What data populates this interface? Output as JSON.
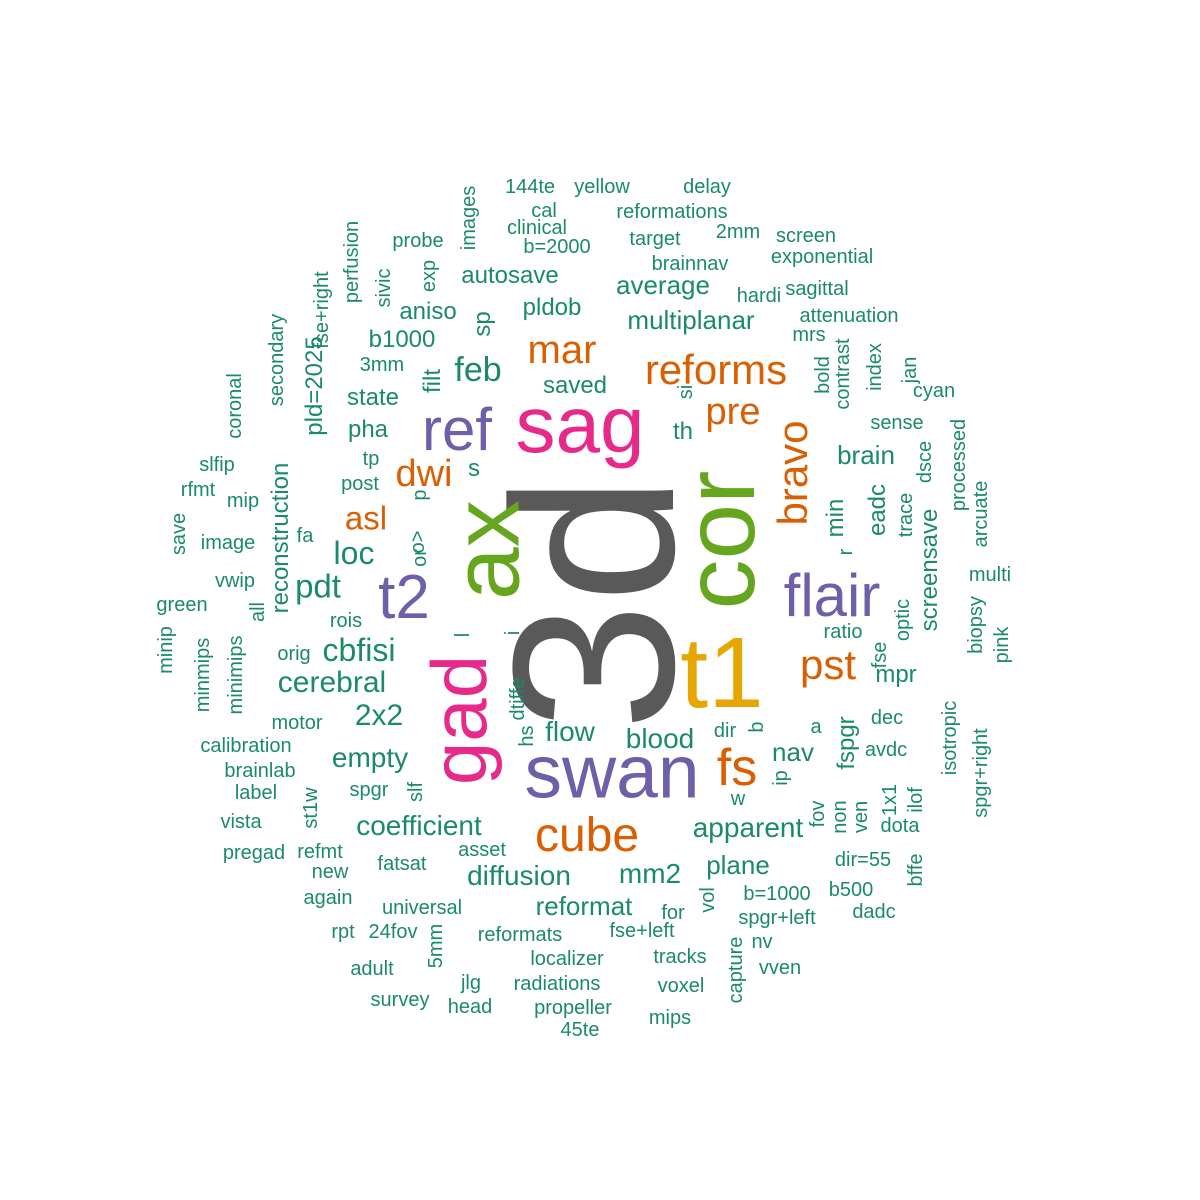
{
  "colors": {
    "background": "#ffffff",
    "gray": "#595959",
    "teal": "#1b8a6b",
    "orange": "#d95f02",
    "purple": "#6e5fa8",
    "magenta": "#e7298a",
    "green": "#66a61e",
    "gold": "#e6a500"
  },
  "words": [
    {
      "text": "3d",
      "color": "gray",
      "orientation": "vertical"
    },
    {
      "text": "sag",
      "color": "magenta",
      "orientation": "horizontal"
    },
    {
      "text": "cor",
      "color": "green",
      "orientation": "vertical"
    },
    {
      "text": "t1",
      "color": "gold",
      "orientation": "horizontal"
    },
    {
      "text": "ax",
      "color": "green",
      "orientation": "vertical"
    },
    {
      "text": "swan",
      "color": "purple",
      "orientation": "horizontal"
    },
    {
      "text": "gad",
      "color": "magenta",
      "orientation": "vertical"
    },
    {
      "text": "flair",
      "color": "purple",
      "orientation": "horizontal"
    },
    {
      "text": "ref",
      "color": "purple",
      "orientation": "horizontal"
    },
    {
      "text": "t2",
      "color": "purple",
      "orientation": "horizontal"
    },
    {
      "text": "cube",
      "color": "orange",
      "orientation": "horizontal"
    },
    {
      "text": "reforms",
      "color": "orange",
      "orientation": "horizontal"
    },
    {
      "text": "bravo",
      "color": "orange",
      "orientation": "vertical"
    },
    {
      "text": "fs",
      "color": "orange",
      "orientation": "horizontal"
    },
    {
      "text": "pst",
      "color": "orange",
      "orientation": "horizontal"
    },
    {
      "text": "mar",
      "color": "orange",
      "orientation": "horizontal"
    },
    {
      "text": "pre",
      "color": "orange",
      "orientation": "horizontal"
    },
    {
      "text": "dwi",
      "color": "orange",
      "orientation": "horizontal"
    },
    {
      "text": "asl",
      "color": "orange",
      "orientation": "horizontal"
    },
    {
      "text": "feb",
      "color": "teal",
      "orientation": "horizontal"
    },
    {
      "text": "loc",
      "color": "teal",
      "orientation": "horizontal"
    },
    {
      "text": "pdt",
      "color": "teal",
      "orientation": "horizontal"
    },
    {
      "text": "cbfisi",
      "color": "teal",
      "orientation": "horizontal"
    },
    {
      "text": "cerebral",
      "color": "teal",
      "orientation": "horizontal"
    },
    {
      "text": "2x2",
      "color": "teal",
      "orientation": "horizontal"
    },
    {
      "text": "empty",
      "color": "teal",
      "orientation": "horizontal"
    },
    {
      "text": "coefficient",
      "color": "teal",
      "orientation": "horizontal"
    },
    {
      "text": "diffusion",
      "color": "teal",
      "orientation": "horizontal"
    },
    {
      "text": "apparent",
      "color": "teal",
      "orientation": "horizontal"
    },
    {
      "text": "blood",
      "color": "teal",
      "orientation": "horizontal"
    },
    {
      "text": "flow",
      "color": "teal",
      "orientation": "horizontal"
    },
    {
      "text": "mm2",
      "color": "teal",
      "orientation": "horizontal"
    },
    {
      "text": "plane",
      "color": "teal",
      "orientation": "horizontal"
    },
    {
      "text": "reformat",
      "color": "teal",
      "orientation": "horizontal"
    },
    {
      "text": "nav",
      "color": "teal",
      "orientation": "horizontal"
    },
    {
      "text": "brain",
      "color": "teal",
      "orientation": "horizontal"
    },
    {
      "text": "eadc",
      "color": "teal",
      "orientation": "vertical"
    },
    {
      "text": "min",
      "color": "teal",
      "orientation": "vertical"
    },
    {
      "text": "screensave",
      "color": "teal",
      "orientation": "vertical"
    },
    {
      "text": "fspgr",
      "color": "teal",
      "orientation": "vertical"
    },
    {
      "text": "mpr",
      "color": "teal",
      "orientation": "horizontal"
    },
    {
      "text": "average",
      "color": "teal",
      "orientation": "horizontal"
    },
    {
      "text": "multiplanar",
      "color": "teal",
      "orientation": "horizontal"
    },
    {
      "text": "autosave",
      "color": "teal",
      "orientation": "horizontal"
    },
    {
      "text": "saved",
      "color": "teal",
      "orientation": "horizontal"
    },
    {
      "text": "state",
      "color": "teal",
      "orientation": "horizontal"
    },
    {
      "text": "pha",
      "color": "teal",
      "orientation": "horizontal"
    },
    {
      "text": "s",
      "color": "teal",
      "orientation": "horizontal"
    },
    {
      "text": "th",
      "color": "teal",
      "orientation": "horizontal"
    },
    {
      "text": "b1000",
      "color": "teal",
      "orientation": "horizontal"
    },
    {
      "text": "aniso",
      "color": "teal",
      "orientation": "horizontal"
    },
    {
      "text": "pldob",
      "color": "teal",
      "orientation": "horizontal"
    },
    {
      "text": "sp",
      "color": "teal",
      "orientation": "vertical"
    },
    {
      "text": "filt",
      "color": "teal",
      "orientation": "vertical"
    },
    {
      "text": "pld=2025",
      "color": "teal",
      "orientation": "vertical"
    },
    {
      "text": "reconstruction",
      "color": "teal",
      "orientation": "vertical"
    },
    {
      "text": "secondary",
      "color": "teal",
      "orientation": "vertical"
    },
    {
      "text": "fse+right",
      "color": "teal",
      "orientation": "vertical"
    },
    {
      "text": "perfusion",
      "color": "teal",
      "orientation": "vertical"
    },
    {
      "text": "sivic",
      "color": "teal",
      "orientation": "vertical"
    },
    {
      "text": "exp",
      "color": "teal",
      "orientation": "vertical"
    },
    {
      "text": "images",
      "color": "teal",
      "orientation": "vertical"
    },
    {
      "text": "probe",
      "color": "teal",
      "orientation": "horizontal"
    },
    {
      "text": "144te",
      "color": "teal",
      "orientation": "horizontal"
    },
    {
      "text": "yellow",
      "color": "teal",
      "orientation": "horizontal"
    },
    {
      "text": "delay",
      "color": "teal",
      "orientation": "horizontal"
    },
    {
      "text": "cal",
      "color": "teal",
      "orientation": "horizontal"
    },
    {
      "text": "clinical",
      "color": "teal",
      "orientation": "horizontal"
    },
    {
      "text": "b=2000",
      "color": "teal",
      "orientation": "horizontal"
    },
    {
      "text": "reformations",
      "color": "teal",
      "orientation": "horizontal"
    },
    {
      "text": "target",
      "color": "teal",
      "orientation": "horizontal"
    },
    {
      "text": "2mm",
      "color": "teal",
      "orientation": "horizontal"
    },
    {
      "text": "screen",
      "color": "teal",
      "orientation": "horizontal"
    },
    {
      "text": "brainnav",
      "color": "teal",
      "orientation": "horizontal"
    },
    {
      "text": "exponential",
      "color": "teal",
      "orientation": "horizontal"
    },
    {
      "text": "hardi",
      "color": "teal",
      "orientation": "horizontal"
    },
    {
      "text": "sagittal",
      "color": "teal",
      "orientation": "horizontal"
    },
    {
      "text": "attenuation",
      "color": "teal",
      "orientation": "horizontal"
    },
    {
      "text": "mrs",
      "color": "teal",
      "orientation": "horizontal"
    },
    {
      "text": "contrast",
      "color": "teal",
      "orientation": "vertical"
    },
    {
      "text": "bold",
      "color": "teal",
      "orientation": "vertical"
    },
    {
      "text": "index",
      "color": "teal",
      "orientation": "vertical"
    },
    {
      "text": "jan",
      "color": "teal",
      "orientation": "vertical"
    },
    {
      "text": "cyan",
      "color": "teal",
      "orientation": "horizontal"
    },
    {
      "text": "sense",
      "color": "teal",
      "orientation": "horizontal"
    },
    {
      "text": "processed",
      "color": "teal",
      "orientation": "vertical"
    },
    {
      "text": "dsce",
      "color": "teal",
      "orientation": "vertical"
    },
    {
      "text": "trace",
      "color": "teal",
      "orientation": "vertical"
    },
    {
      "text": "arcuate",
      "color": "teal",
      "orientation": "vertical"
    },
    {
      "text": "multi",
      "color": "teal",
      "orientation": "horizontal"
    },
    {
      "text": "biopsy",
      "color": "teal",
      "orientation": "vertical"
    },
    {
      "text": "pink",
      "color": "teal",
      "orientation": "vertical"
    },
    {
      "text": "optic",
      "color": "teal",
      "orientation": "vertical"
    },
    {
      "text": "ratio",
      "color": "teal",
      "orientation": "horizontal"
    },
    {
      "text": "fse",
      "color": "teal",
      "orientation": "vertical"
    },
    {
      "text": "dec",
      "color": "teal",
      "orientation": "horizontal"
    },
    {
      "text": "avdc",
      "color": "teal",
      "orientation": "horizontal"
    },
    {
      "text": "isotropic",
      "color": "teal",
      "orientation": "vertical"
    },
    {
      "text": "spgr+right",
      "color": "teal",
      "orientation": "vertical"
    },
    {
      "text": "1x1",
      "color": "teal",
      "orientation": "vertical"
    },
    {
      "text": "ilof",
      "color": "teal",
      "orientation": "vertical"
    },
    {
      "text": "non",
      "color": "teal",
      "orientation": "vertical"
    },
    {
      "text": "ven",
      "color": "teal",
      "orientation": "vertical"
    },
    {
      "text": "fov",
      "color": "teal",
      "orientation": "vertical"
    },
    {
      "text": "dota",
      "color": "teal",
      "orientation": "horizontal"
    },
    {
      "text": "dir=55",
      "color": "teal",
      "orientation": "horizontal"
    },
    {
      "text": "bffe",
      "color": "teal",
      "orientation": "vertical"
    },
    {
      "text": "b500",
      "color": "teal",
      "orientation": "horizontal"
    },
    {
      "text": "dadc",
      "color": "teal",
      "orientation": "horizontal"
    },
    {
      "text": "b=1000",
      "color": "teal",
      "orientation": "horizontal"
    },
    {
      "text": "spgr+left",
      "color": "teal",
      "orientation": "horizontal"
    },
    {
      "text": "nv",
      "color": "teal",
      "orientation": "horizontal"
    },
    {
      "text": "vven",
      "color": "teal",
      "orientation": "horizontal"
    },
    {
      "text": "capture",
      "color": "teal",
      "orientation": "vertical"
    },
    {
      "text": "vol",
      "color": "teal",
      "orientation": "vertical"
    },
    {
      "text": "for",
      "color": "teal",
      "orientation": "horizontal"
    },
    {
      "text": "fse+left",
      "color": "teal",
      "orientation": "horizontal"
    },
    {
      "text": "tracks",
      "color": "teal",
      "orientation": "horizontal"
    },
    {
      "text": "voxel",
      "color": "teal",
      "orientation": "horizontal"
    },
    {
      "text": "mips",
      "color": "teal",
      "orientation": "horizontal"
    },
    {
      "text": "localizer",
      "color": "teal",
      "orientation": "horizontal"
    },
    {
      "text": "radiations",
      "color": "teal",
      "orientation": "horizontal"
    },
    {
      "text": "propeller",
      "color": "teal",
      "orientation": "horizontal"
    },
    {
      "text": "45te",
      "color": "teal",
      "orientation": "horizontal"
    },
    {
      "text": "head",
      "color": "teal",
      "orientation": "horizontal"
    },
    {
      "text": "jlg",
      "color": "teal",
      "orientation": "horizontal"
    },
    {
      "text": "reformats",
      "color": "teal",
      "orientation": "horizontal"
    },
    {
      "text": "universal",
      "color": "teal",
      "orientation": "horizontal"
    },
    {
      "text": "24fov",
      "color": "teal",
      "orientation": "horizontal"
    },
    {
      "text": "rpt",
      "color": "teal",
      "orientation": "horizontal"
    },
    {
      "text": "5mm",
      "color": "teal",
      "orientation": "vertical"
    },
    {
      "text": "adult",
      "color": "teal",
      "orientation": "horizontal"
    },
    {
      "text": "survey",
      "color": "teal",
      "orientation": "horizontal"
    },
    {
      "text": "again",
      "color": "teal",
      "orientation": "horizontal"
    },
    {
      "text": "new",
      "color": "teal",
      "orientation": "horizontal"
    },
    {
      "text": "refmt",
      "color": "teal",
      "orientation": "horizontal"
    },
    {
      "text": "pregad",
      "color": "teal",
      "orientation": "horizontal"
    },
    {
      "text": "fatsat",
      "color": "teal",
      "orientation": "horizontal"
    },
    {
      "text": "asset",
      "color": "teal",
      "orientation": "horizontal"
    },
    {
      "text": "vista",
      "color": "teal",
      "orientation": "horizontal"
    },
    {
      "text": "st1w",
      "color": "teal",
      "orientation": "vertical"
    },
    {
      "text": "spgr",
      "color": "teal",
      "orientation": "horizontal"
    },
    {
      "text": "slf",
      "color": "teal",
      "orientation": "vertical"
    },
    {
      "text": "label",
      "color": "teal",
      "orientation": "horizontal"
    },
    {
      "text": "brainlab",
      "color": "teal",
      "orientation": "horizontal"
    },
    {
      "text": "calibration",
      "color": "teal",
      "orientation": "horizontal"
    },
    {
      "text": "motor",
      "color": "teal",
      "orientation": "horizontal"
    },
    {
      "text": "minimips",
      "color": "teal",
      "orientation": "vertical"
    },
    {
      "text": "minmips",
      "color": "teal",
      "orientation": "vertical"
    },
    {
      "text": "minip",
      "color": "teal",
      "orientation": "vertical"
    },
    {
      "text": "orig",
      "color": "teal",
      "orientation": "horizontal"
    },
    {
      "text": "all",
      "color": "teal",
      "orientation": "vertical"
    },
    {
      "text": "green",
      "color": "teal",
      "orientation": "horizontal"
    },
    {
      "text": "vwip",
      "color": "teal",
      "orientation": "horizontal"
    },
    {
      "text": "rois",
      "color": "teal",
      "orientation": "horizontal"
    },
    {
      "text": "image",
      "color": "teal",
      "orientation": "horizontal"
    },
    {
      "text": "save",
      "color": "teal",
      "orientation": "vertical"
    },
    {
      "text": "fa",
      "color": "teal",
      "orientation": "horizontal"
    },
    {
      "text": "mip",
      "color": "teal",
      "orientation": "horizontal"
    },
    {
      "text": "rfmt",
      "color": "teal",
      "orientation": "horizontal"
    },
    {
      "text": "slfip",
      "color": "teal",
      "orientation": "horizontal"
    },
    {
      "text": "coronal",
      "color": "teal",
      "orientation": "vertical"
    },
    {
      "text": "post",
      "color": "teal",
      "orientation": "horizontal"
    },
    {
      "text": "tp",
      "color": "teal",
      "orientation": "horizontal"
    },
    {
      "text": "3mm",
      "color": "teal",
      "orientation": "horizontal"
    },
    {
      "text": "p",
      "color": "teal",
      "orientation": "vertical"
    },
    {
      "text": "o>",
      "color": "teal",
      "orientation": "vertical"
    },
    {
      "text": "or",
      "color": "teal",
      "orientation": "vertical"
    },
    {
      "text": "l",
      "color": "teal",
      "orientation": "vertical"
    },
    {
      "text": "i",
      "color": "teal",
      "orientation": "vertical"
    },
    {
      "text": "dtiffe",
      "color": "teal",
      "orientation": "vertical"
    },
    {
      "text": "hs",
      "color": "teal",
      "orientation": "vertical"
    },
    {
      "text": "si",
      "color": "teal",
      "orientation": "vertical"
    },
    {
      "text": "r",
      "color": "teal",
      "orientation": "vertical"
    },
    {
      "text": "a",
      "color": "teal",
      "orientation": "horizontal"
    },
    {
      "text": "ip",
      "color": "teal",
      "orientation": "vertical"
    },
    {
      "text": "dir",
      "color": "teal",
      "orientation": "horizontal"
    },
    {
      "text": "b",
      "color": "teal",
      "orientation": "vertical"
    },
    {
      "text": "w",
      "color": "teal",
      "orientation": "horizontal"
    }
  ]
}
